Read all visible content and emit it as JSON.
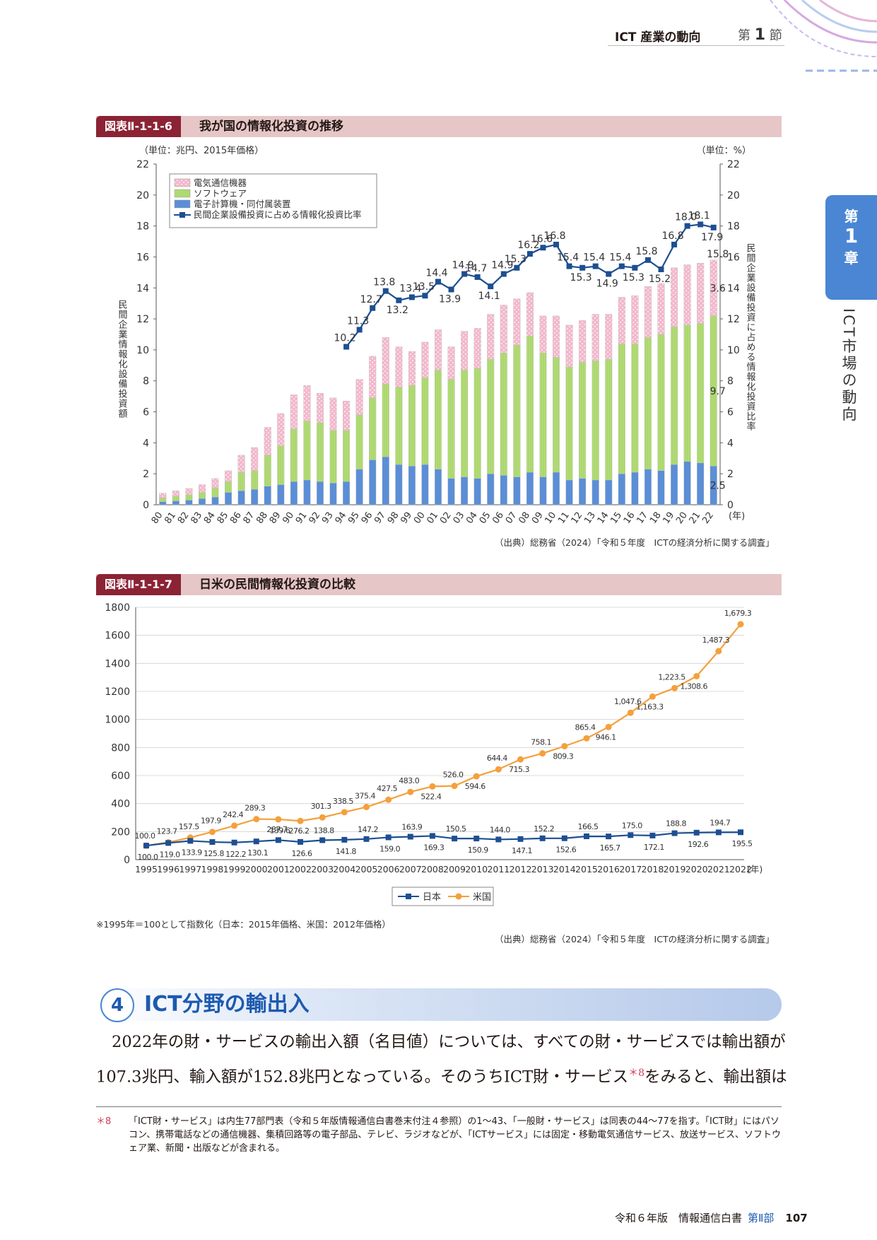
{
  "header": {
    "section_title": "ICT 産業の動向",
    "section_prefix": "第",
    "section_num": "1",
    "section_suffix": "節"
  },
  "chapter_tab": {
    "line1": "第",
    "line2": "1",
    "line3": "章",
    "side_text": "ICT市場の動向"
  },
  "figure1": {
    "label": "図表Ⅱ-1-1-6",
    "title": "我が国の情報化投資の推移",
    "source": "（出典）総務省（2024）「令和５年度　ICTの経済分析に関する調査」"
  },
  "figure2": {
    "label": "図表Ⅱ-1-1-7",
    "title": "日米の民間情報化投資の比較",
    "note": "※1995年＝100として指数化（日本：2015年価格、米国：2012年価格）",
    "source": "（出典）総務省（2024）「令和５年度　ICTの経済分析に関する調査」"
  },
  "section": {
    "number": "4",
    "title": "ICT分野の輸出入"
  },
  "body": {
    "para1": "2022年の財・サービスの輸出入額（名目値）については、すべての財・サービスでは輸出額が",
    "para2a": "107.3兆円、輸入額が152.8兆円となっている。そのうちICT財・サービス",
    "para2_sup": "＊8",
    "para2b": "をみると、輸出額は"
  },
  "footnote": {
    "mark": "＊8",
    "text": "「ICT財・サービス」は内生77部門表（令和５年版情報通信白書巻末付注４参照）の1～43、「一般財・サービス」は同表の44～77を指す。「ICT財」にはパソコン、携帯電話などの通信機器、集積回路等の電子部品、テレビ、ラジオなどが、「ICTサービス」には固定・移動電気通信サービス、放送サービス、ソフトウェア業、新聞・出版などが含まれる。"
  },
  "footer": {
    "book": "令和６年版　情報通信白書",
    "part": "第Ⅱ部",
    "page": "107"
  },
  "colors": {
    "hardware": "#5b8ed6",
    "software": "#b5de7a",
    "telecom": "#f2b8cc",
    "ratio": "#1d4f91",
    "japan": "#1d4f91",
    "us": "#f4a03c",
    "label_bg": "#8b2335"
  },
  "chart_data": [
    {
      "type": "bar",
      "stacked": true,
      "title": "我が国の情報化投資の推移",
      "unit_left": "（単位：兆円、2015年価格）",
      "unit_right": "（単位：%）",
      "ylabel": "民間企業情報化設備投資額",
      "y2label": "民間企業設備投資に占める情報化投資比率",
      "year_unit": "(年)",
      "ylim": [
        0,
        22
      ],
      "y_ticks": [
        0,
        2,
        4,
        6,
        8,
        10,
        12,
        14,
        16,
        18,
        20,
        22
      ],
      "categories": [
        "80",
        "81",
        "82",
        "83",
        "84",
        "85",
        "86",
        "87",
        "88",
        "89",
        "90",
        "91",
        "92",
        "93",
        "94",
        "95",
        "96",
        "97",
        "98",
        "99",
        "00",
        "01",
        "02",
        "03",
        "04",
        "05",
        "06",
        "07",
        "08",
        "09",
        "10",
        "11",
        "12",
        "13",
        "14",
        "15",
        "16",
        "17",
        "18",
        "19",
        "20",
        "21",
        "22"
      ],
      "series": [
        {
          "name": "電子計算機・同付属装置",
          "values": [
            0.2,
            0.25,
            0.3,
            0.4,
            0.5,
            0.8,
            0.9,
            1.0,
            1.2,
            1.3,
            1.5,
            1.6,
            1.5,
            1.4,
            1.5,
            2.3,
            2.9,
            3.1,
            2.6,
            2.5,
            2.6,
            2.3,
            1.7,
            1.8,
            1.7,
            2.0,
            1.9,
            1.8,
            2.1,
            1.8,
            2.1,
            1.6,
            1.7,
            1.6,
            1.6,
            2.0,
            2.1,
            2.3,
            2.2,
            2.6,
            2.8,
            2.7,
            2.5
          ]
        },
        {
          "name": "ソフトウェア",
          "values": [
            0.25,
            0.3,
            0.35,
            0.4,
            0.6,
            0.7,
            1.2,
            1.2,
            2.0,
            2.5,
            3.4,
            3.8,
            3.8,
            3.4,
            3.3,
            3.5,
            4.0,
            4.7,
            5.0,
            5.2,
            5.6,
            6.4,
            6.4,
            6.9,
            7.1,
            7.4,
            7.9,
            8.5,
            8.8,
            8.0,
            7.4,
            7.3,
            7.5,
            7.7,
            7.8,
            8.4,
            8.3,
            8.5,
            8.8,
            8.9,
            8.8,
            9.0,
            9.7
          ]
        },
        {
          "name": "電気通信機器",
          "values": [
            0.3,
            0.35,
            0.4,
            0.5,
            0.6,
            0.7,
            1.1,
            1.5,
            1.8,
            2.1,
            2.2,
            2.3,
            1.9,
            2.1,
            1.9,
            2.3,
            2.7,
            3.0,
            2.6,
            2.2,
            2.3,
            2.6,
            2.1,
            2.5,
            2.6,
            2.9,
            3.1,
            3.0,
            2.8,
            2.4,
            2.7,
            2.7,
            2.7,
            3.0,
            2.9,
            3.0,
            3.1,
            3.3,
            3.3,
            3.8,
            3.9,
            3.9,
            3.6
          ]
        }
      ],
      "ratio_series": {
        "name": "民間企業設備投資に占める情報化投資比率",
        "categories": [
          "94",
          "95",
          "96",
          "97",
          "98",
          "99",
          "00",
          "01",
          "02",
          "03",
          "04",
          "05",
          "06",
          "07",
          "08",
          "09",
          "10",
          "11",
          "12",
          "13",
          "14",
          "15",
          "16",
          "17",
          "18",
          "19",
          "20",
          "21",
          "22"
        ],
        "values": [
          10.2,
          11.3,
          12.7,
          13.8,
          13.2,
          13.4,
          13.5,
          14.4,
          13.9,
          14.9,
          14.7,
          14.1,
          14.9,
          15.3,
          16.2,
          16.6,
          16.8,
          15.4,
          15.3,
          15.4,
          14.9,
          15.4,
          15.3,
          15.8,
          15.2,
          16.8,
          18.0,
          18.1,
          17.9
        ]
      },
      "annotations": {
        "last_total": "15.8",
        "last_telecom": "3.6",
        "last_software": "9.7",
        "last_hardware": "2.5"
      }
    },
    {
      "type": "line",
      "title": "日米の民間情報化投資の比較",
      "year_unit": "(年)",
      "ylim": [
        0,
        1800
      ],
      "y_ticks": [
        0,
        200,
        400,
        600,
        800,
        1000,
        1200,
        1400,
        1600,
        1800
      ],
      "x": [
        "1995",
        "1996",
        "1997",
        "1998",
        "1999",
        "2000",
        "2001",
        "2002",
        "2003",
        "2004",
        "2005",
        "2006",
        "2007",
        "2008",
        "2009",
        "2010",
        "2011",
        "2012",
        "2013",
        "2014",
        "2015",
        "2016",
        "2017",
        "2018",
        "2019",
        "2020",
        "2021",
        "2022"
      ],
      "series": [
        {
          "name": "日本",
          "values": [
            100.0,
            119.0,
            133.9,
            125.8,
            122.2,
            130.1,
            139.6,
            126.6,
            138.8,
            141.8,
            147.2,
            159.0,
            163.9,
            169.3,
            150.5,
            150.9,
            144.0,
            147.1,
            152.2,
            152.6,
            166.5,
            165.7,
            175.0,
            172.1,
            188.8,
            192.6,
            194.7,
            195.5
          ],
          "labels": [
            "100.0",
            "119.0",
            "133.9",
            "125.8",
            "122.2",
            "130.1",
            "139.6",
            "126.6",
            "138.8",
            "141.8",
            "147.2",
            "159.0",
            "163.9",
            "169.3",
            "150.5",
            "150.9",
            "144.0",
            "147.1",
            "152.2",
            "152.6",
            "166.5",
            "165.7",
            "175.0",
            "172.1",
            "188.8",
            "192.6",
            "194.7",
            "195.5"
          ]
        },
        {
          "name": "米国",
          "values": [
            100.0,
            123.7,
            157.5,
            197.9,
            242.4,
            289.3,
            287.7,
            276.2,
            301.3,
            338.5,
            375.4,
            427.5,
            483.0,
            522.4,
            526.0,
            594.6,
            644.4,
            715.3,
            758.1,
            809.3,
            865.4,
            946.1,
            1047.6,
            1163.3,
            1223.5,
            1308.6,
            1487.3,
            1679.3
          ],
          "labels": [
            "100.0",
            "123.7",
            "157.5",
            "197.9",
            "242.4",
            "289.3",
            "287.7",
            "276.2",
            "301.3",
            "338.5",
            "375.4",
            "427.5",
            "483.0",
            "522.4",
            "526.0",
            "594.6",
            "644.4",
            "715.3",
            "758.1",
            "809.3",
            "865.4",
            "946.1",
            "1,047.6",
            "1,163.3",
            "1,223.5",
            "1,308.6",
            "1,487.3",
            "1,679.3"
          ]
        }
      ]
    }
  ]
}
